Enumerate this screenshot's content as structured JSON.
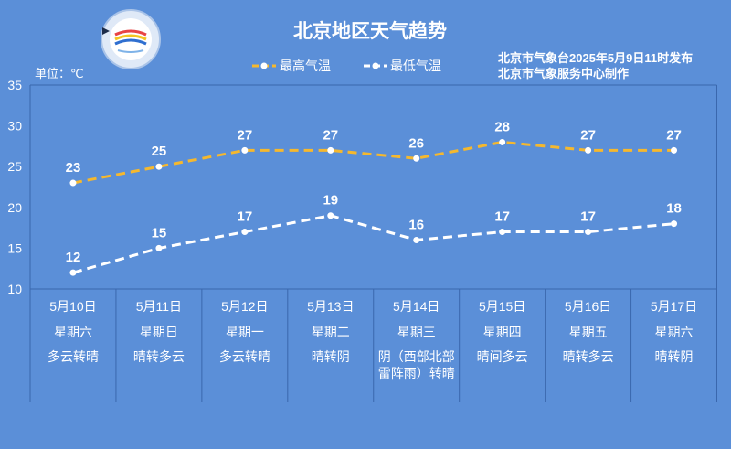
{
  "issuer": {
    "published": "北京市气象台2025年5月9日11时发布",
    "producer": "北京市气象服务中心制作"
  },
  "colors": {
    "background": "#5b8fd8",
    "max_temperature": "#f5b82e",
    "min_temperature": "#ffffff",
    "frame": "#3a67ad"
  },
  "chart_data": {
    "type": "line",
    "title": "北京地区天气趋势",
    "ylabel": "单位：℃",
    "ylim": [
      10,
      35
    ],
    "yticks": [
      10,
      15,
      20,
      25,
      30,
      35
    ],
    "grid": false,
    "legend_position": "top",
    "categories": [
      "5月10日",
      "5月11日",
      "5月12日",
      "5月13日",
      "5月14日",
      "5月15日",
      "5月16日",
      "5月17日"
    ],
    "series": [
      {
        "name": "最高气温",
        "values": [
          23,
          25,
          27,
          27,
          26,
          28,
          27,
          27
        ],
        "color": "#f5b82e"
      },
      {
        "name": "最低气温",
        "values": [
          12,
          15,
          17,
          19,
          16,
          17,
          17,
          18
        ],
        "color": "#ffffff"
      }
    ]
  },
  "table": {
    "weekdays": [
      "星期六",
      "星期日",
      "星期一",
      "星期二",
      "星期三",
      "星期四",
      "星期五",
      "星期六"
    ],
    "weather": [
      "多云转晴",
      "晴转多云",
      "多云转晴",
      "晴转阴",
      "阴（西部北部\n雷阵雨）转晴",
      "晴间多云",
      "晴转多云",
      "晴转阴"
    ]
  }
}
